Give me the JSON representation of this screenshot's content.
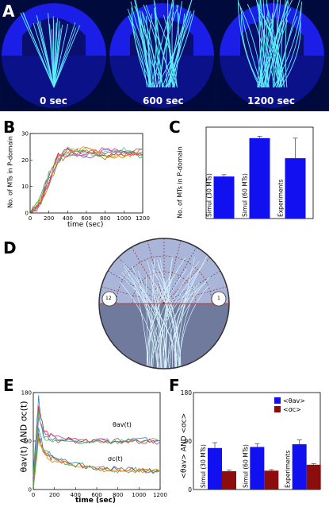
{
  "figure": {
    "panel_labels": [
      "A",
      "B",
      "C",
      "D",
      "E",
      "F"
    ],
    "colors": {
      "panel_a_bg": "#000a3c",
      "dome_blue": "#1a1ee6",
      "pdomain_navy": "#0a0f6e",
      "microtubule": "#5ff0ff",
      "bar_blue": "#1010f0",
      "bar_darkred": "#8b0d0d"
    }
  },
  "panel_a": {
    "time_labels": [
      "0 sec",
      "600 sec",
      "1200 sec"
    ]
  },
  "panel_d": {
    "circle_labels": [
      "12",
      "1"
    ]
  },
  "chart_data": [
    {
      "panel": "B",
      "type": "line",
      "xlabel": "time (sec)",
      "ylabel": "No. of MTs in P-domain",
      "xlim": [
        0,
        1200
      ],
      "ylim": [
        0,
        30
      ],
      "xticks": [
        "0",
        "200",
        "400",
        "600",
        "800",
        "1000",
        "1200"
      ],
      "yticks": [
        "0",
        "10",
        "20",
        "30"
      ],
      "series": [
        {
          "color": "#e41a1c",
          "x": [
            0,
            100,
            200,
            300,
            400,
            600,
            800,
            1000,
            1200
          ],
          "values": [
            0,
            4,
            14,
            22,
            24,
            23,
            22,
            23,
            22
          ]
        },
        {
          "color": "#377eb8",
          "x": [
            0,
            100,
            200,
            300,
            400,
            600,
            800,
            1000,
            1200
          ],
          "values": [
            0,
            3,
            12,
            20,
            23,
            22,
            24,
            22,
            23
          ]
        },
        {
          "color": "#4daf4a",
          "x": [
            0,
            100,
            200,
            300,
            400,
            600,
            800,
            1000,
            1200
          ],
          "values": [
            0,
            5,
            15,
            21,
            22,
            24,
            21,
            24,
            21
          ]
        },
        {
          "color": "#984ea3",
          "x": [
            0,
            100,
            200,
            300,
            400,
            600,
            800,
            1000,
            1200
          ],
          "values": [
            0,
            3,
            13,
            19,
            24,
            21,
            23,
            22,
            24
          ]
        },
        {
          "color": "#ff7f00",
          "x": [
            0,
            100,
            200,
            300,
            400,
            600,
            800,
            1000,
            1200
          ],
          "values": [
            0,
            4,
            11,
            21,
            23,
            25,
            22,
            21,
            23
          ]
        },
        {
          "color": "#e7298a",
          "x": [
            0,
            100,
            200,
            300,
            400,
            600,
            800,
            1000,
            1200
          ],
          "values": [
            0,
            2,
            12,
            22,
            21,
            23,
            24,
            23,
            22
          ]
        },
        {
          "color": "#66c2a5",
          "x": [
            0,
            100,
            200,
            300,
            400,
            600,
            800,
            1000,
            1200
          ],
          "values": [
            0,
            5,
            14,
            20,
            25,
            22,
            23,
            24,
            21
          ]
        },
        {
          "color": "#a6761d",
          "x": [
            0,
            100,
            200,
            300,
            400,
            600,
            800,
            1000,
            1200
          ],
          "values": [
            0,
            3,
            10,
            19,
            22,
            24,
            21,
            22,
            24
          ]
        }
      ]
    },
    {
      "panel": "C",
      "type": "bar",
      "ylabel": "No. of MTs in P-domain",
      "ylim": [
        0,
        50
      ],
      "categories": [
        "Simul (30 MTs)",
        "Simul (60 MTs)",
        "Experiments"
      ],
      "values": [
        23,
        44,
        33
      ],
      "errors": [
        1,
        1,
        11
      ]
    },
    {
      "panel": "E",
      "type": "line",
      "xlabel": "time (sec)",
      "ylabel": "θav(t) AND σc(t)",
      "xlim": [
        0,
        1200
      ],
      "ylim": [
        0,
        180
      ],
      "xticks": [
        "0",
        "200",
        "400",
        "600",
        "800",
        "1000",
        "1200"
      ],
      "yticks": [
        "0",
        "90",
        "180"
      ],
      "annotations": [
        "θav(t)",
        "σc(t)"
      ],
      "series": [
        {
          "color": "#e41a1c",
          "x": [
            0,
            50,
            100,
            200,
            400,
            600,
            800,
            1000,
            1200
          ],
          "values": [
            20,
            150,
            110,
            95,
            92,
            90,
            91,
            89,
            90
          ]
        },
        {
          "color": "#377eb8",
          "x": [
            0,
            50,
            100,
            200,
            400,
            600,
            800,
            1000,
            1200
          ],
          "values": [
            30,
            170,
            100,
            92,
            90,
            93,
            88,
            92,
            91
          ]
        },
        {
          "color": "#984ea3",
          "x": [
            0,
            50,
            100,
            200,
            400,
            600,
            800,
            1000,
            1200
          ],
          "values": [
            10,
            130,
            105,
            96,
            91,
            89,
            92,
            90,
            88
          ]
        },
        {
          "color": "#4daf4a",
          "x": [
            0,
            50,
            100,
            200,
            400,
            600,
            800,
            1000,
            1200
          ],
          "values": [
            25,
            140,
            95,
            88,
            89,
            91,
            90,
            92,
            89
          ]
        },
        {
          "color": "#e41a1c",
          "x": [
            0,
            50,
            100,
            200,
            400,
            600,
            800,
            1000,
            1200
          ],
          "values": [
            5,
            100,
            70,
            55,
            45,
            40,
            37,
            35,
            34
          ]
        },
        {
          "color": "#377eb8",
          "x": [
            0,
            50,
            100,
            200,
            400,
            600,
            800,
            1000,
            1200
          ],
          "values": [
            8,
            110,
            75,
            58,
            47,
            41,
            38,
            36,
            35
          ]
        },
        {
          "color": "#ff7f00",
          "x": [
            0,
            50,
            100,
            200,
            400,
            600,
            800,
            1000,
            1200
          ],
          "values": [
            6,
            90,
            68,
            52,
            44,
            39,
            36,
            35,
            33
          ]
        },
        {
          "color": "#4daf4a",
          "x": [
            0,
            50,
            100,
            200,
            400,
            600,
            800,
            1000,
            1200
          ],
          "values": [
            4,
            95,
            72,
            56,
            46,
            40,
            37,
            36,
            34
          ]
        }
      ]
    },
    {
      "panel": "F",
      "type": "bar",
      "ylabel": "<θav> AND <σc>",
      "ylim": [
        0,
        180
      ],
      "yticks": [
        "0",
        "90",
        "180"
      ],
      "categories": [
        "Simul (30 MTs)",
        "Simul (60 MTs)",
        "Experiments"
      ],
      "series": [
        {
          "name": "<θav>",
          "color": "#1010f0",
          "values": [
            77,
            79,
            84
          ],
          "errors": [
            10,
            6,
            8
          ]
        },
        {
          "name": "<σc>",
          "color": "#8b0d0d",
          "values": [
            34,
            35,
            46
          ],
          "errors": [
            2,
            2,
            2
          ]
        }
      ],
      "legend": "top-right"
    }
  ]
}
